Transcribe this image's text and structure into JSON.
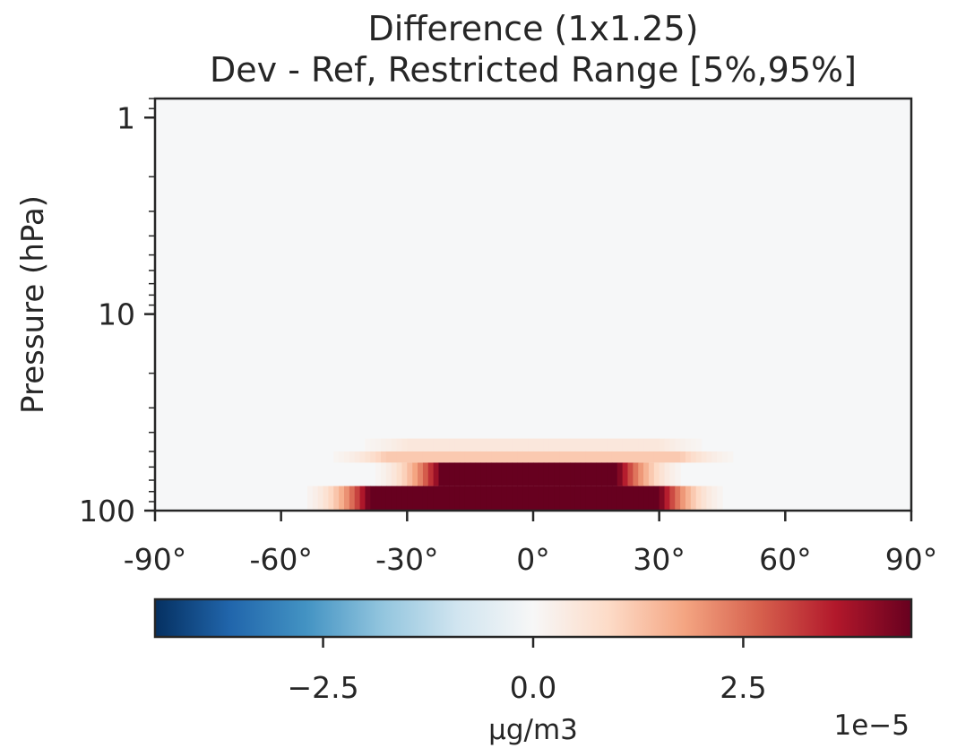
{
  "chart_data": {
    "type": "heatmap",
    "title": "Difference (1x1.25)",
    "subtitle": "Dev - Ref, Restricted Range [5%,95%]",
    "ylabel": "Pressure (hPa)",
    "xlabel": "",
    "x_scale": "linear",
    "y_scale": "log",
    "y_inverted": true,
    "xlim": [
      -90,
      90
    ],
    "ylim": [
      100,
      0.8
    ],
    "x_ticks": [
      -90,
      -60,
      -30,
      0,
      30,
      60,
      90
    ],
    "x_tick_labels": [
      "-90°",
      "-60°",
      "-30°",
      "0°",
      "30°",
      "60°",
      "90°"
    ],
    "y_ticks": [
      1,
      10,
      100
    ],
    "y_tick_labels": [
      "1",
      "10",
      "100"
    ],
    "grid": false,
    "colormap": "RdBu_r",
    "colorbar": {
      "orientation": "horizontal",
      "location": "bottom",
      "vmin": -4.5e-05,
      "vmax": 4.5e-05,
      "ticks": [
        -2.5e-05,
        0.0,
        2.5e-05
      ],
      "tick_labels": [
        "−2.5",
        "0.0",
        "2.5"
      ],
      "label": "µg/m3",
      "offset_text": "1e−5"
    },
    "bands": [
      {
        "pressure_top": 43,
        "pressure_bottom": 50,
        "lat_min": -30,
        "lat_max": 30,
        "value": 5e-06
      },
      {
        "pressure_top": 50,
        "pressure_bottom": 57,
        "lat_min": -35,
        "lat_max": 35,
        "value": 1.2e-05
      },
      {
        "pressure_top": 57,
        "pressure_bottom": 75,
        "lat_min": -22,
        "lat_max": 20,
        "value": 4.5e-05
      },
      {
        "pressure_top": 75,
        "pressure_bottom": 100,
        "lat_min": -39,
        "lat_max": 30,
        "value": 4.5e-05
      }
    ],
    "band_edge_fade_degrees": 18
  },
  "colors": {
    "background_field": "#f6f7f8",
    "axis": "#262626",
    "colormap_stops": [
      "#053061",
      "#2166ac",
      "#4393c3",
      "#92c5de",
      "#d1e5f0",
      "#f7f7f7",
      "#fddbc7",
      "#f4a582",
      "#d6604d",
      "#b2182b",
      "#67001f"
    ]
  }
}
